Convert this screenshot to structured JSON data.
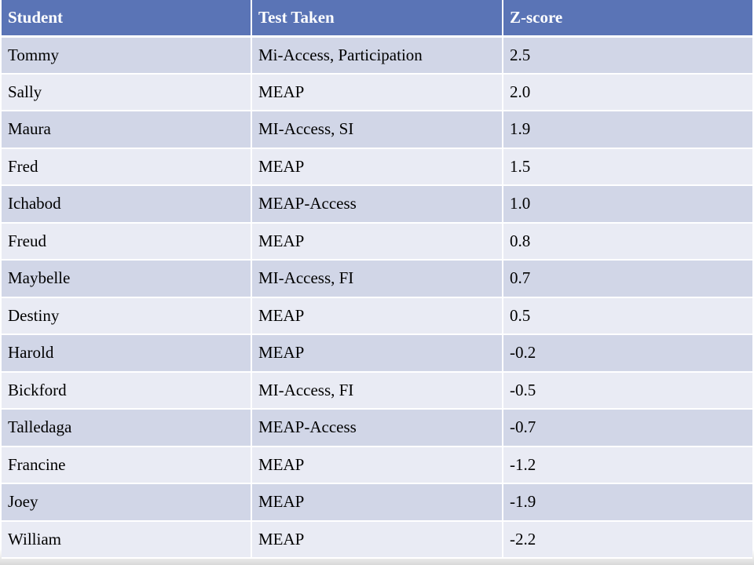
{
  "table": {
    "headers": [
      "Student",
      "Test Taken",
      "Z-score"
    ],
    "rows": [
      [
        "Tommy",
        "Mi-Access, Participation",
        "2.5"
      ],
      [
        "Sally",
        "MEAP",
        "2.0"
      ],
      [
        "Maura",
        "MI-Access, SI",
        "1.9"
      ],
      [
        "Fred",
        "MEAP",
        "1.5"
      ],
      [
        "Ichabod",
        "MEAP-Access",
        "1.0"
      ],
      [
        "Freud",
        "MEAP",
        "0.8"
      ],
      [
        "Maybelle",
        "MI-Access, FI",
        "0.7"
      ],
      [
        "Destiny",
        "MEAP",
        "0.5"
      ],
      [
        "Harold",
        "MEAP",
        "-0.2"
      ],
      [
        "Bickford",
        "MI-Access, FI",
        "-0.5"
      ],
      [
        "Talledaga",
        "MEAP-Access",
        "-0.7"
      ],
      [
        "Francine",
        "MEAP",
        "-1.2"
      ],
      [
        "Joey",
        "MEAP",
        "-1.9"
      ],
      [
        "William",
        "MEAP",
        "-2.2"
      ]
    ]
  },
  "colors": {
    "header_bg": "#5a74b6",
    "row_dark": "#d1d6e7",
    "row_light": "#e9ebf4"
  }
}
